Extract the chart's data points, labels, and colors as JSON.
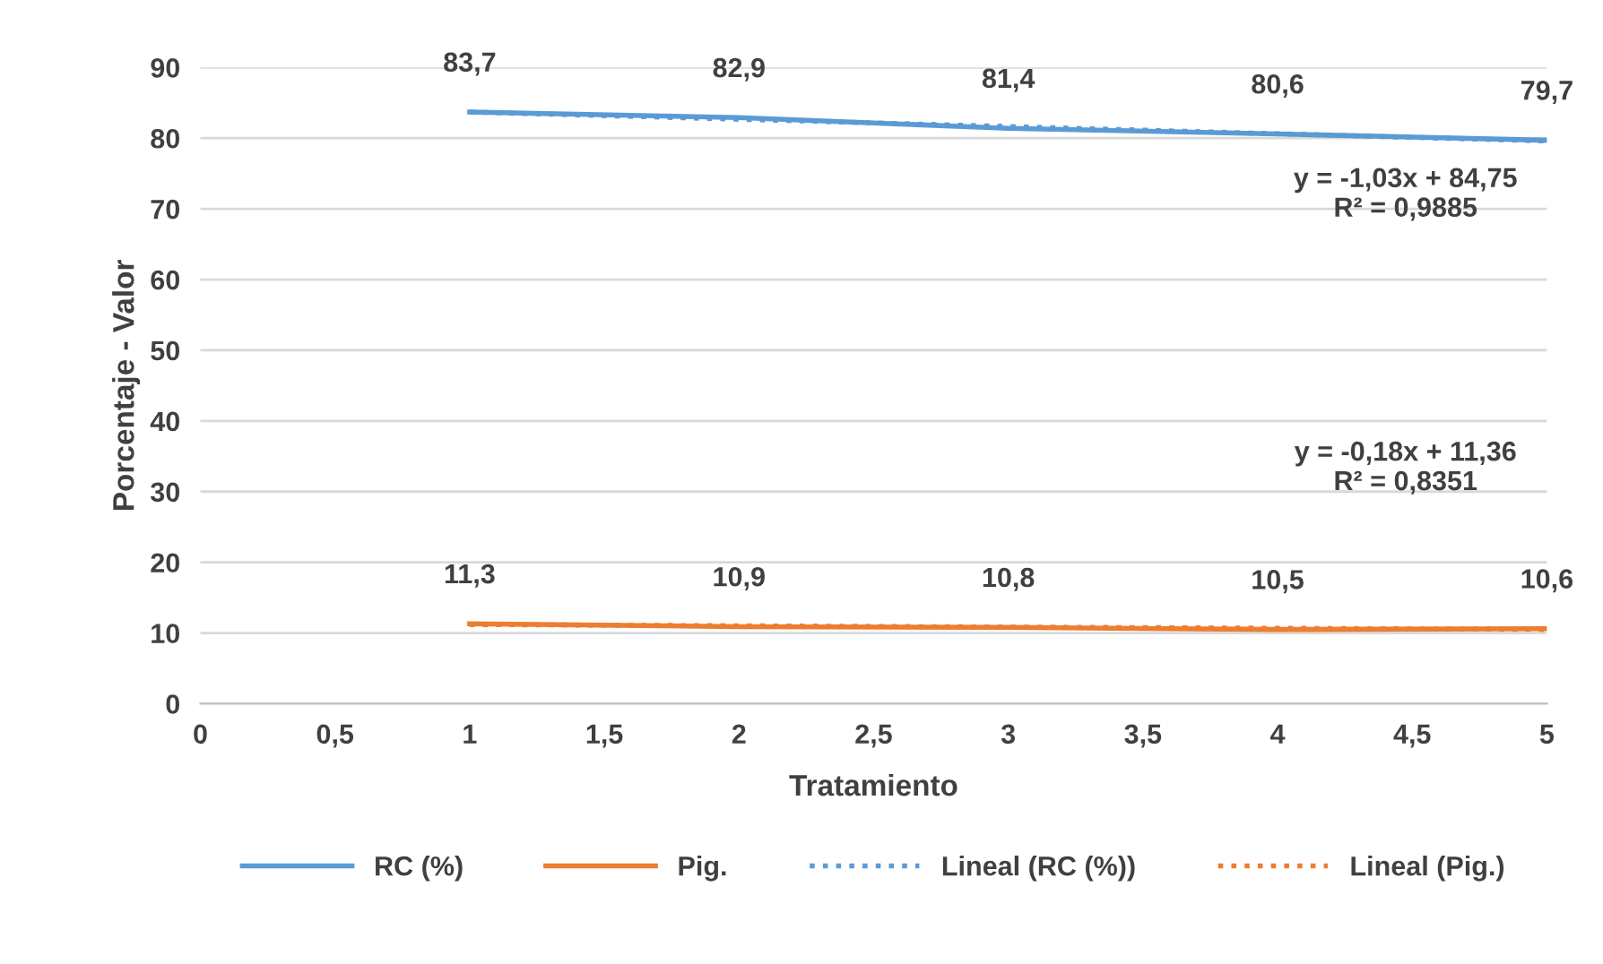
{
  "chart_data": {
    "type": "line",
    "xlabel": "Tratamiento",
    "ylabel": "Porcentaje - Valor",
    "xlim": [
      0,
      5
    ],
    "ylim": [
      0,
      90
    ],
    "xticks": [
      0,
      {
        "value": 0.5,
        "label": "0,5"
      },
      1,
      {
        "value": 1.5,
        "label": "1,5"
      },
      2,
      {
        "value": 2.5,
        "label": "2,5"
      },
      3,
      {
        "value": 3.5,
        "label": "3,5"
      },
      4,
      {
        "value": 4.5,
        "label": "4,5"
      },
      5
    ],
    "yticks": [
      0,
      10,
      20,
      30,
      40,
      50,
      60,
      70,
      80,
      90
    ],
    "grid": "y",
    "legend": "bottom",
    "marker": "none",
    "series": [
      {
        "name": "RC (%)",
        "color": "#5b9bd5",
        "x": [
          1,
          2,
          3,
          4,
          5
        ],
        "values": [
          83.7,
          82.9,
          81.4,
          80.6,
          79.7
        ],
        "value_labels": [
          "83,7",
          "82,9",
          "81,4",
          "80,6",
          "79,7"
        ],
        "line_style": "solid"
      },
      {
        "name": "Pig.",
        "color": "#ed7d31",
        "x": [
          1,
          2,
          3,
          4,
          5
        ],
        "values": [
          11.3,
          10.9,
          10.8,
          10.5,
          10.6
        ],
        "value_labels": [
          "11,3",
          "10,9",
          "10,8",
          "10,5",
          "10,6"
        ],
        "line_style": "solid"
      },
      {
        "name": "Lineal (RC (%))",
        "color": "#5b9bd5",
        "x": [
          1,
          5
        ],
        "values": [
          83.7,
          79.6
        ],
        "line_style": "dotted"
      },
      {
        "name": "Lineal (Pig.)",
        "color": "#ed7d31",
        "x": [
          1,
          5
        ],
        "values": [
          11.2,
          10.5
        ],
        "line_style": "dotted"
      }
    ],
    "annotations": [
      "y = -1,03x + 84,75\nR² = 0,9885",
      "y = -0,18x + 11,36\nR² = 0,8351"
    ]
  }
}
